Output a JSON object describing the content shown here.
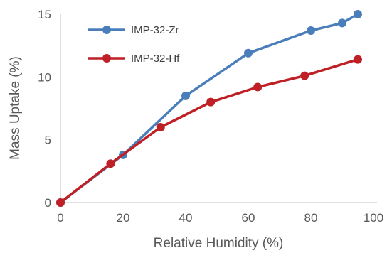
{
  "chart_data": {
    "type": "line",
    "xlabel": "Relative Humidity (%)",
    "ylabel": "Mass Uptake (%)",
    "xlim": [
      0,
      100
    ],
    "ylim": [
      0,
      15
    ],
    "x_ticks": [
      "0",
      "20",
      "40",
      "60",
      "80",
      "100"
    ],
    "y_ticks": [
      "0",
      "5",
      "10",
      "15"
    ],
    "grid": false,
    "legend_position": "top-left",
    "series": [
      {
        "name": "IMP-32-Zr",
        "color": "#4a7ebb",
        "x": [
          0,
          20,
          40,
          60,
          80,
          90,
          95
        ],
        "y": [
          0,
          3.8,
          8.5,
          11.9,
          13.7,
          14.3,
          15.0
        ]
      },
      {
        "name": "IMP-32-Hf",
        "color": "#be2026",
        "x": [
          0,
          16,
          32,
          48,
          63,
          78,
          95
        ],
        "y": [
          0,
          3.1,
          6.0,
          8.0,
          9.2,
          10.1,
          11.4
        ]
      }
    ]
  }
}
